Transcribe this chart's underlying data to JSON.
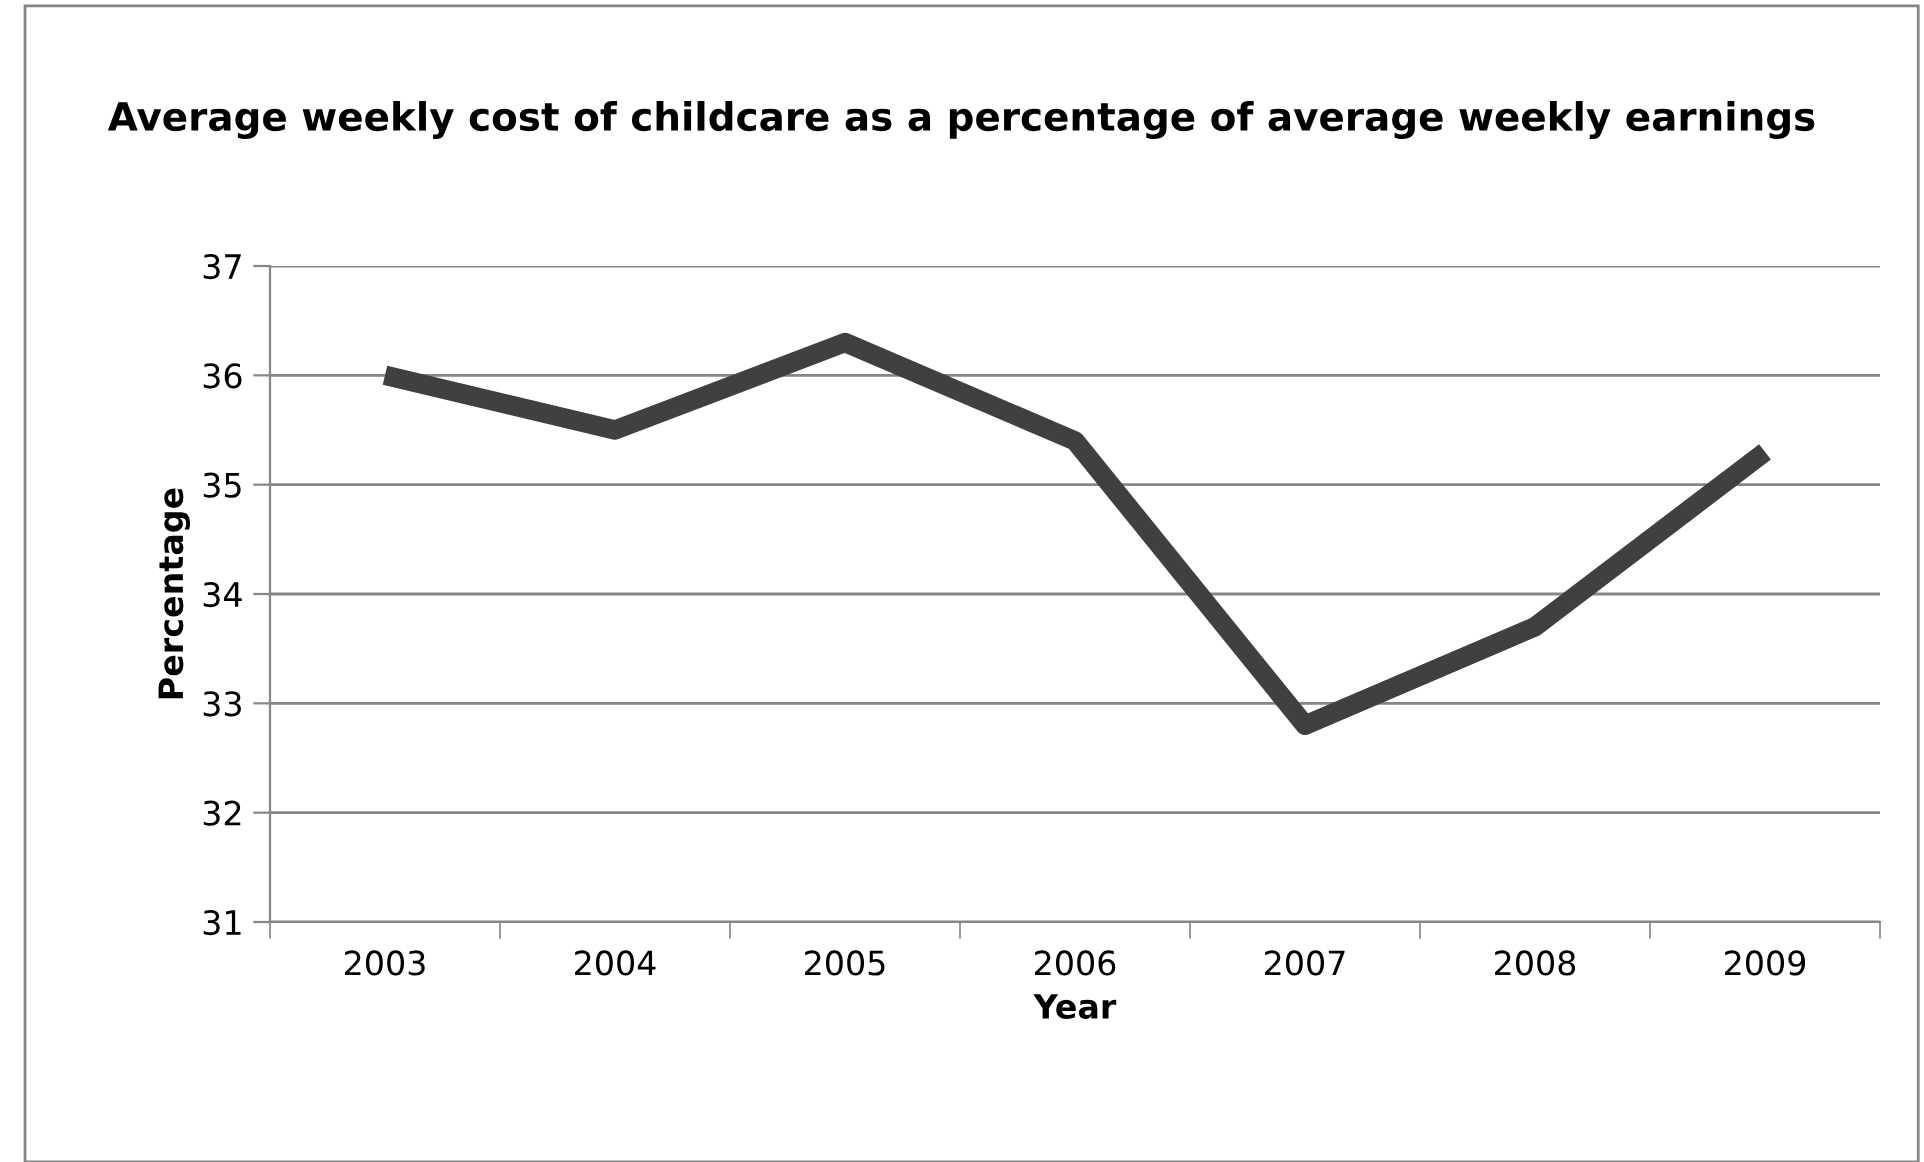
{
  "chart_data": {
    "type": "line",
    "title": "Average weekly cost of childcare as a percentage of average weekly earnings",
    "xlabel": "Year",
    "ylabel": "Percentage",
    "categories": [
      "2003",
      "2004",
      "2005",
      "2006",
      "2007",
      "2008",
      "2009"
    ],
    "series": [
      {
        "color": "#404040",
        "values": [
          36.0,
          35.5,
          36.3,
          35.4,
          32.8,
          33.7,
          35.3
        ]
      }
    ],
    "ylim": [
      31,
      37
    ],
    "yticks": [
      31,
      32,
      33,
      34,
      35,
      36,
      37
    ],
    "grid": "y",
    "legend": false,
    "marker": "none",
    "line_style": "solid"
  }
}
